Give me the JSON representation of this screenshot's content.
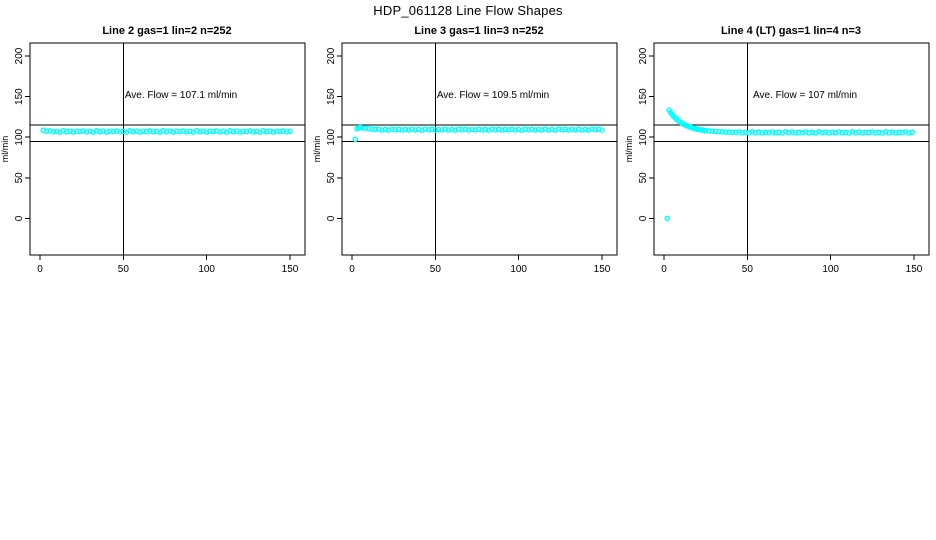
{
  "colors": {
    "points": "#00FFFF",
    "axis": "#000000",
    "background": "#FFFFFF"
  },
  "chart_data": {
    "type": "scatter",
    "title": "HDP_061128  Line Flow Shapes",
    "ylabel": "ml/min",
    "xlabel": "",
    "x_ticks": [
      0,
      50,
      100,
      150
    ],
    "y_ticks": [
      0,
      50,
      100,
      150,
      200
    ],
    "xlim": [
      -6,
      159
    ],
    "ylim": [
      -45,
      216
    ],
    "grid": false,
    "legend": "none",
    "reference_hlines": [
      95,
      115
    ],
    "reference_vline": 50,
    "marker": "open-circle",
    "panels": [
      {
        "title": "Line 2 gas=1 lin=2 n=252",
        "annotation": "Ave. Flow =  107.1   ml/min",
        "ave_flow": 107.1,
        "n": 252,
        "points": [
          [
            2,
            108.6
          ],
          [
            4,
            107.4
          ],
          [
            6,
            107.7
          ],
          [
            8,
            106.5
          ],
          [
            10,
            107.2
          ],
          [
            12,
            106.2
          ],
          [
            14,
            108.0
          ],
          [
            16,
            106.7
          ],
          [
            18,
            107.5
          ],
          [
            20,
            106.3
          ],
          [
            22,
            107.3
          ],
          [
            24,
            106.8
          ],
          [
            26,
            107.7
          ],
          [
            28,
            106.5
          ],
          [
            30,
            107.2
          ],
          [
            32,
            106.2
          ],
          [
            34,
            108.0
          ],
          [
            36,
            106.7
          ],
          [
            38,
            107.5
          ],
          [
            40,
            106.3
          ],
          [
            42,
            107.3
          ],
          [
            44,
            106.8
          ],
          [
            46,
            107.7
          ],
          [
            48,
            106.5
          ],
          [
            50,
            107.2
          ],
          [
            52,
            106.2
          ],
          [
            54,
            108.0
          ],
          [
            56,
            106.7
          ],
          [
            58,
            107.5
          ],
          [
            60,
            106.3
          ],
          [
            62,
            107.3
          ],
          [
            64,
            106.8
          ],
          [
            66,
            107.7
          ],
          [
            68,
            106.5
          ],
          [
            70,
            107.2
          ],
          [
            72,
            106.2
          ],
          [
            74,
            108.0
          ],
          [
            76,
            106.7
          ],
          [
            78,
            107.5
          ],
          [
            80,
            106.3
          ],
          [
            82,
            107.3
          ],
          [
            84,
            106.8
          ],
          [
            86,
            107.7
          ],
          [
            88,
            106.5
          ],
          [
            90,
            107.2
          ],
          [
            92,
            106.2
          ],
          [
            94,
            108.0
          ],
          [
            96,
            106.7
          ],
          [
            98,
            107.5
          ],
          [
            100,
            106.3
          ],
          [
            102,
            107.3
          ],
          [
            104,
            106.8
          ],
          [
            106,
            107.7
          ],
          [
            108,
            106.5
          ],
          [
            110,
            107.2
          ],
          [
            112,
            106.2
          ],
          [
            114,
            108.0
          ],
          [
            116,
            106.7
          ],
          [
            118,
            107.5
          ],
          [
            120,
            106.3
          ],
          [
            122,
            107.3
          ],
          [
            124,
            106.8
          ],
          [
            126,
            107.7
          ],
          [
            128,
            106.5
          ],
          [
            130,
            107.2
          ],
          [
            132,
            106.2
          ],
          [
            134,
            108.0
          ],
          [
            136,
            106.7
          ],
          [
            138,
            107.5
          ],
          [
            140,
            106.3
          ],
          [
            142,
            107.3
          ],
          [
            144,
            106.8
          ],
          [
            146,
            107.7
          ],
          [
            148,
            106.5
          ],
          [
            150,
            107.2
          ]
        ]
      },
      {
        "title": "Line 3 gas=1 lin=3 n=252",
        "annotation": "Ave. Flow =  109.5   ml/min",
        "ave_flow": 109.5,
        "n": 252,
        "points": [
          [
            2,
            97.5
          ],
          [
            3,
            110.2
          ],
          [
            4,
            111.6
          ],
          [
            5,
            112.0
          ],
          [
            6,
            111.5
          ],
          [
            8,
            111.0
          ],
          [
            10,
            110.5
          ],
          [
            12,
            110.1
          ],
          [
            14,
            109.8
          ],
          [
            16,
            109.9
          ],
          [
            18,
            108.9
          ],
          [
            20,
            109.6
          ],
          [
            22,
            108.7
          ],
          [
            24,
            110.1
          ],
          [
            26,
            109.1
          ],
          [
            28,
            109.7
          ],
          [
            30,
            108.8
          ],
          [
            32,
            109.5
          ],
          [
            34,
            109.0
          ],
          [
            36,
            109.9
          ],
          [
            38,
            108.9
          ],
          [
            40,
            109.6
          ],
          [
            42,
            108.7
          ],
          [
            44,
            110.1
          ],
          [
            46,
            109.1
          ],
          [
            48,
            109.7
          ],
          [
            50,
            108.8
          ],
          [
            52,
            109.5
          ],
          [
            54,
            109.0
          ],
          [
            56,
            109.9
          ],
          [
            58,
            108.9
          ],
          [
            60,
            109.6
          ],
          [
            62,
            108.7
          ],
          [
            64,
            110.1
          ],
          [
            66,
            109.1
          ],
          [
            68,
            109.7
          ],
          [
            70,
            108.8
          ],
          [
            72,
            109.5
          ],
          [
            74,
            109.0
          ],
          [
            76,
            109.9
          ],
          [
            78,
            108.9
          ],
          [
            80,
            109.6
          ],
          [
            82,
            108.7
          ],
          [
            84,
            110.1
          ],
          [
            86,
            109.1
          ],
          [
            88,
            109.7
          ],
          [
            90,
            108.8
          ],
          [
            92,
            109.5
          ],
          [
            94,
            109.0
          ],
          [
            96,
            109.9
          ],
          [
            98,
            108.9
          ],
          [
            100,
            109.6
          ],
          [
            102,
            108.7
          ],
          [
            104,
            110.1
          ],
          [
            106,
            109.1
          ],
          [
            108,
            109.7
          ],
          [
            110,
            108.8
          ],
          [
            112,
            109.5
          ],
          [
            114,
            109.0
          ],
          [
            116,
            109.9
          ],
          [
            118,
            108.9
          ],
          [
            120,
            109.6
          ],
          [
            122,
            108.7
          ],
          [
            124,
            110.1
          ],
          [
            126,
            109.1
          ],
          [
            128,
            109.7
          ],
          [
            130,
            108.8
          ],
          [
            132,
            109.5
          ],
          [
            134,
            109.0
          ],
          [
            136,
            109.9
          ],
          [
            138,
            108.9
          ],
          [
            140,
            109.6
          ],
          [
            142,
            108.7
          ],
          [
            144,
            110.1
          ],
          [
            146,
            109.1
          ],
          [
            148,
            109.7
          ],
          [
            150,
            108.8
          ]
        ]
      },
      {
        "title": "Line 4 (LT) gas=1 lin=4 n=3",
        "annotation": "Ave. Flow =  107   ml/min",
        "ave_flow": 107,
        "n": 3,
        "points": [
          [
            2,
            0
          ],
          [
            3,
            133.3
          ],
          [
            4,
            130.4
          ],
          [
            5,
            127.8
          ],
          [
            6,
            125.4
          ],
          [
            7,
            123.4
          ],
          [
            8,
            121.4
          ],
          [
            9,
            119.9
          ],
          [
            10,
            118.3
          ],
          [
            11,
            117.1
          ],
          [
            12,
            115.9
          ],
          [
            13,
            114.9
          ],
          [
            14,
            113.9
          ],
          [
            15,
            113.0
          ],
          [
            16,
            112.3
          ],
          [
            17,
            111.6
          ],
          [
            18,
            111.0
          ],
          [
            19,
            110.4
          ],
          [
            20,
            109.9
          ],
          [
            21,
            109.5
          ],
          [
            22,
            109.1
          ],
          [
            23,
            108.8
          ],
          [
            24,
            108.5
          ],
          [
            25,
            108.2
          ],
          [
            27,
            107.7
          ],
          [
            29,
            107.3
          ],
          [
            31,
            107.0
          ],
          [
            33,
            106.8
          ],
          [
            35,
            106.6
          ],
          [
            37,
            106.4
          ],
          [
            39,
            106.3
          ],
          [
            41,
            106.2
          ],
          [
            43,
            106.1
          ],
          [
            45,
            106.5
          ],
          [
            47,
            105.4
          ],
          [
            49,
            106.1
          ],
          [
            51,
            105.2
          ],
          [
            53,
            106.6
          ],
          [
            55,
            105.6
          ],
          [
            57,
            106.3
          ],
          [
            59,
            105.3
          ],
          [
            61,
            106.0
          ],
          [
            63,
            105.7
          ],
          [
            65,
            106.5
          ],
          [
            67,
            105.4
          ],
          [
            69,
            106.1
          ],
          [
            71,
            105.2
          ],
          [
            73,
            106.6
          ],
          [
            75,
            105.6
          ],
          [
            77,
            106.3
          ],
          [
            79,
            105.3
          ],
          [
            81,
            106.0
          ],
          [
            83,
            105.7
          ],
          [
            85,
            106.5
          ],
          [
            87,
            105.4
          ],
          [
            89,
            106.1
          ],
          [
            91,
            105.2
          ],
          [
            93,
            106.6
          ],
          [
            95,
            105.6
          ],
          [
            97,
            106.3
          ],
          [
            99,
            105.3
          ],
          [
            101,
            106.0
          ],
          [
            103,
            105.7
          ],
          [
            105,
            106.5
          ],
          [
            107,
            105.4
          ],
          [
            109,
            106.1
          ],
          [
            111,
            105.2
          ],
          [
            113,
            106.6
          ],
          [
            115,
            105.6
          ],
          [
            117,
            106.3
          ],
          [
            119,
            105.3
          ],
          [
            121,
            106.0
          ],
          [
            123,
            105.7
          ],
          [
            125,
            106.5
          ],
          [
            127,
            105.4
          ],
          [
            129,
            106.1
          ],
          [
            131,
            105.2
          ],
          [
            133,
            106.6
          ],
          [
            135,
            105.6
          ],
          [
            137,
            106.3
          ],
          [
            139,
            105.3
          ],
          [
            141,
            106.0
          ],
          [
            143,
            105.7
          ],
          [
            145,
            106.5
          ],
          [
            147,
            105.4
          ],
          [
            149,
            106.1
          ]
        ]
      }
    ]
  }
}
